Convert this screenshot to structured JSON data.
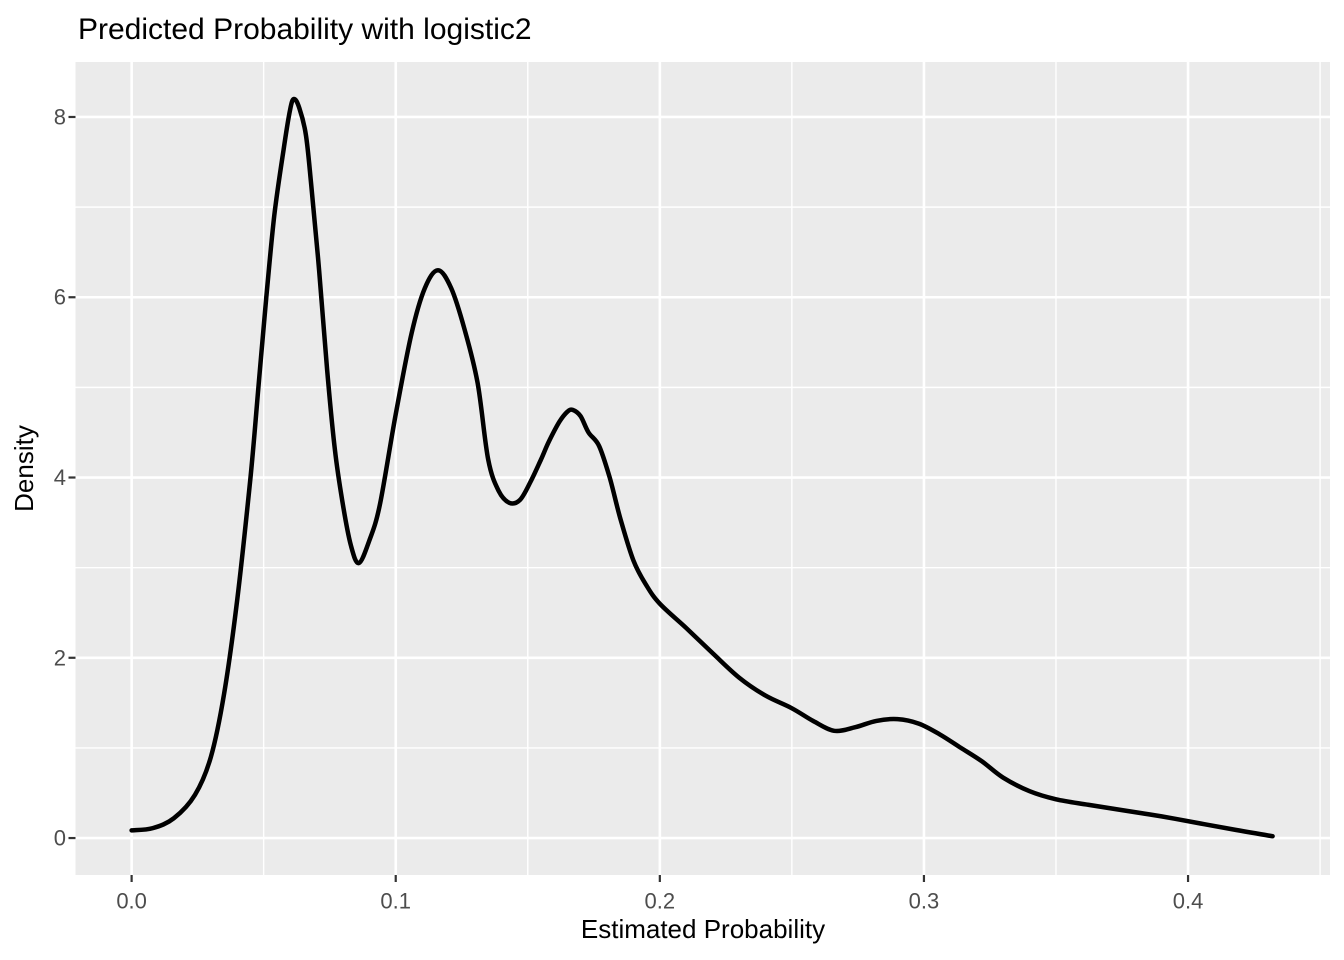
{
  "title": "Predicted Probability with logistic2",
  "chart_data": {
    "type": "line",
    "subtype": "density",
    "title": "Predicted Probability with logistic2",
    "xlabel": "Estimated Probability",
    "ylabel": "Density",
    "xlim": [
      -0.02125,
      0.45375
    ],
    "ylim": [
      -0.41,
      8.61
    ],
    "x_ticks": [
      0.0,
      0.1,
      0.2,
      0.3,
      0.4
    ],
    "x_tick_labels": [
      "0.0",
      "0.1",
      "0.2",
      "0.3",
      "0.4"
    ],
    "y_ticks": [
      0,
      2,
      4,
      6,
      8
    ],
    "y_tick_labels": [
      "0",
      "2",
      "4",
      "6",
      "8"
    ],
    "x_minor_gridlines": [
      0.05,
      0.15,
      0.25,
      0.35,
      0.45
    ],
    "y_minor_gridlines": [
      1,
      3,
      5,
      7
    ],
    "grid": true,
    "legend": "none",
    "colors": {
      "line": "#000000",
      "panel_background": "#EBEBEB",
      "gridline": "#FFFFFF",
      "tick_mark": "#333333",
      "tick_label": "#4D4D4D",
      "title": "#000000",
      "page_background": "#FFFFFF"
    },
    "series": [
      {
        "name": "density",
        "x": [
          0.0,
          0.008,
          0.016,
          0.024,
          0.03,
          0.035,
          0.04,
          0.045,
          0.048,
          0.051,
          0.054,
          0.0575,
          0.06,
          0.0615,
          0.0635,
          0.066,
          0.068,
          0.071,
          0.074,
          0.077,
          0.08,
          0.083,
          0.086,
          0.09,
          0.094,
          0.1,
          0.106,
          0.111,
          0.116,
          0.121,
          0.126,
          0.131,
          0.135,
          0.139,
          0.143,
          0.147,
          0.151,
          0.155,
          0.158,
          0.162,
          0.165,
          0.167,
          0.17,
          0.173,
          0.177,
          0.181,
          0.185,
          0.19,
          0.195,
          0.2,
          0.21,
          0.22,
          0.23,
          0.24,
          0.25,
          0.258,
          0.266,
          0.274,
          0.282,
          0.29,
          0.298,
          0.306,
          0.314,
          0.322,
          0.33,
          0.34,
          0.35,
          0.362,
          0.375,
          0.39,
          0.405,
          0.418,
          0.426,
          0.432
        ],
        "y": [
          0.085,
          0.11,
          0.22,
          0.48,
          0.9,
          1.6,
          2.65,
          4.0,
          5.0,
          6.0,
          6.9,
          7.63,
          8.08,
          8.2,
          8.1,
          7.8,
          7.25,
          6.3,
          5.2,
          4.3,
          3.7,
          3.25,
          3.05,
          3.3,
          3.7,
          4.7,
          5.6,
          6.1,
          6.3,
          6.1,
          5.65,
          5.05,
          4.2,
          3.85,
          3.72,
          3.75,
          3.95,
          4.2,
          4.4,
          4.62,
          4.73,
          4.75,
          4.68,
          4.5,
          4.35,
          4.0,
          3.55,
          3.08,
          2.8,
          2.6,
          2.33,
          2.05,
          1.78,
          1.58,
          1.44,
          1.3,
          1.19,
          1.23,
          1.3,
          1.32,
          1.27,
          1.15,
          1.0,
          0.85,
          0.67,
          0.52,
          0.43,
          0.37,
          0.31,
          0.24,
          0.16,
          0.09,
          0.05,
          0.02
        ]
      }
    ],
    "annotations": {
      "peaks": [
        {
          "x": 0.0615,
          "y": 8.2
        },
        {
          "x": 0.116,
          "y": 6.3
        },
        {
          "x": 0.167,
          "y": 4.75
        },
        {
          "x": 0.29,
          "y": 1.32
        }
      ],
      "valleys": [
        {
          "x": 0.086,
          "y": 3.05
        },
        {
          "x": 0.143,
          "y": 3.72
        },
        {
          "x": 0.266,
          "y": 1.19
        }
      ]
    }
  }
}
